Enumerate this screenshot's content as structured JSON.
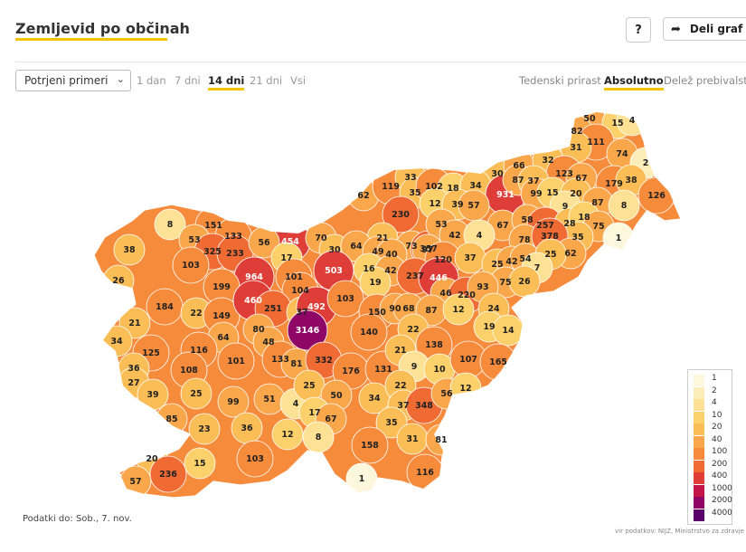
{
  "header": {
    "title": "Zemljevid po občinah",
    "help_label": "?",
    "share_label": "Deli graf na"
  },
  "controls": {
    "dropdown_value": "Potrjeni primeri",
    "ranges": [
      "1 dan",
      "7 dni",
      "14 dni",
      "21 dni",
      "Vsi"
    ],
    "active_range": "14 dni",
    "modes": [
      "Tedenski prirast",
      "Absolutno",
      "Delež prebivalstva"
    ],
    "active_mode": "Absolutno"
  },
  "map": {
    "municipality_values": [
      50,
      15,
      4,
      82,
      111,
      74,
      31,
      30,
      66,
      32,
      123,
      67,
      179,
      2,
      38,
      126,
      62,
      119,
      33,
      35,
      102,
      18,
      34,
      931,
      87,
      37,
      99,
      15,
      20,
      9,
      87,
      8,
      230,
      12,
      39,
      57,
      67,
      58,
      257,
      28,
      18,
      75,
      35,
      1,
      8,
      151,
      454,
      70,
      21,
      73,
      357,
      53,
      42,
      4,
      78,
      378,
      62,
      53,
      133,
      325,
      233,
      56,
      17,
      30,
      64,
      49,
      40,
      97,
      120,
      37,
      25,
      42,
      54,
      25,
      7,
      38,
      103,
      964,
      101,
      503,
      16,
      42,
      237,
      446,
      75,
      26,
      26,
      199,
      104,
      19,
      46,
      220,
      93,
      184,
      22,
      149,
      460,
      251,
      37,
      492,
      103,
      150,
      90,
      68,
      87,
      12,
      24,
      21,
      3146,
      22,
      80,
      48,
      140,
      19,
      14,
      34,
      64,
      116,
      125,
      133,
      81,
      332,
      176,
      131,
      21,
      138,
      36,
      108,
      101,
      9,
      10,
      107,
      165,
      27,
      39,
      25,
      99,
      51,
      4,
      25,
      50,
      34,
      22,
      37,
      348,
      56,
      12,
      85,
      17,
      67,
      35,
      31,
      81,
      23,
      36,
      12,
      8,
      103,
      158,
      116,
      20,
      15,
      236,
      57,
      1
    ],
    "legend": [
      "1",
      "2",
      "4",
      "10",
      "20",
      "40",
      "100",
      "200",
      "400",
      "1000",
      "2000",
      "4000"
    ],
    "legend_colors": [
      "#fdf7de",
      "#fdedb8",
      "#fde195",
      "#fcd06a",
      "#fbbd55",
      "#faa64a",
      "#f78b3c",
      "#f06a33",
      "#df3d37",
      "#c41548",
      "#8f0667",
      "#5a0069"
    ]
  },
  "footer": {
    "data_as_of": "Podatki do: Sob., 7. nov.",
    "source": "vir podatkov: NIJZ, Ministrstvo za zdravje"
  }
}
